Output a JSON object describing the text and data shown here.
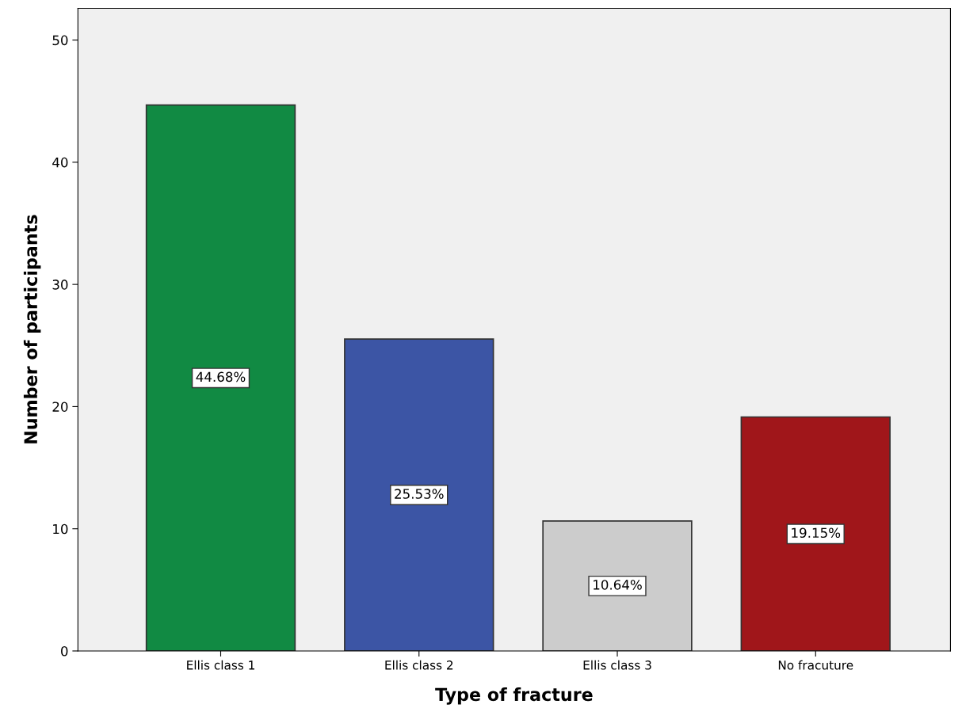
{
  "chart_data": {
    "type": "bar",
    "xlabel": "Type of fracture",
    "ylabel": "Number of participants",
    "categories": [
      "Ellis class 1",
      "Ellis class 2",
      "Ellis class 3",
      "No fracuture"
    ],
    "values": [
      44.68,
      25.53,
      10.64,
      19.15
    ],
    "colors": [
      "#118a43",
      "#3c55a5",
      "#cccccc",
      "#a0161a"
    ],
    "value_labels": [
      "44.68%",
      "25.53%",
      "10.64%",
      "19.15%"
    ],
    "ylim": [
      0,
      52.6
    ],
    "yticks": [
      0,
      10,
      20,
      30,
      40,
      50
    ],
    "grid": false
  }
}
